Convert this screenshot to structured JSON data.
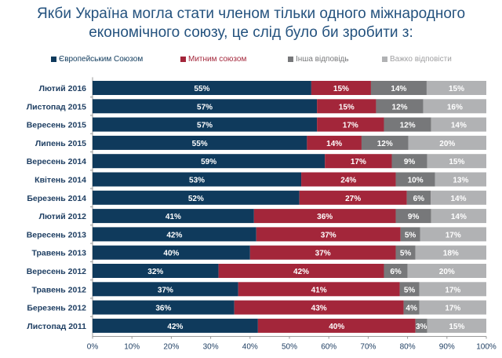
{
  "chart_data": {
    "type": "bar",
    "orientation": "horizontal",
    "stacked": true,
    "title": "Якби Україна могла стати членом тільки одного міжнародного економічного союзу, це слід було би зробити з:",
    "categories": [
      "Лютий 2016",
      "Листопад 2015",
      "Вересень 2015",
      "Липень 2015",
      "Вересень 2014",
      "Квітень 2014",
      "Березень 2014",
      "Лютий 2012",
      "Вересень 2013",
      "Травень 2013",
      "Вересень 2012",
      "Травень 2012",
      "Березень 2012",
      "Листопад 2011"
    ],
    "series": [
      {
        "name": "Європейським Союзом",
        "color": "#0f3a5c",
        "values": [
          55,
          57,
          57,
          55,
          59,
          53,
          52,
          41,
          42,
          40,
          32,
          37,
          36,
          42
        ]
      },
      {
        "name": "Митним союзом",
        "color": "#a3263a",
        "values": [
          15,
          15,
          17,
          14,
          17,
          24,
          27,
          36,
          37,
          37,
          42,
          41,
          43,
          40
        ]
      },
      {
        "name": "Інша відповідь",
        "color": "#77787a",
        "values": [
          14,
          12,
          12,
          12,
          9,
          10,
          6,
          9,
          5,
          5,
          6,
          5,
          4,
          3
        ]
      },
      {
        "name": "Важко відповісти",
        "color": "#b1b2b4",
        "values": [
          15,
          16,
          14,
          20,
          15,
          13,
          14,
          14,
          17,
          18,
          20,
          17,
          17,
          15
        ]
      }
    ],
    "xlim": [
      0,
      100
    ],
    "xticks": [
      "0%",
      "10%",
      "20%",
      "30%",
      "40%",
      "50%",
      "60%",
      "70%",
      "80%",
      "90%",
      "100%"
    ],
    "legend_position": "top",
    "grid": false,
    "legend_text_colors": [
      "#0f3a5c",
      "#a3263a",
      "#77787a",
      "#a0a0a2"
    ]
  }
}
